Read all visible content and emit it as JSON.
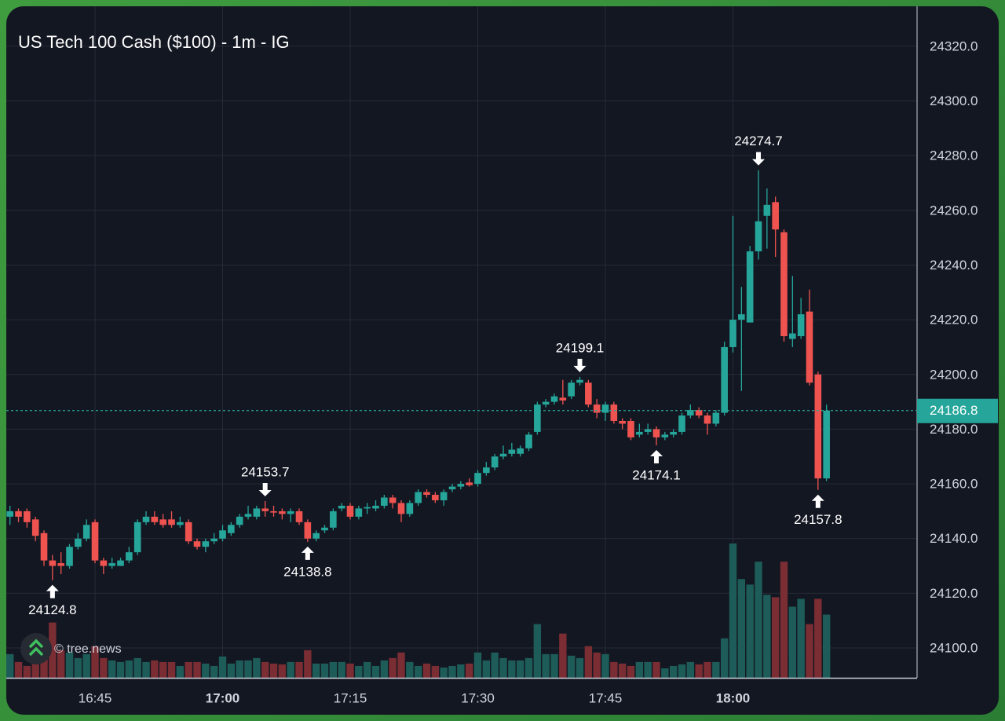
{
  "chart_data": {
    "type": "candlestick",
    "title": "US Tech 100 Cash ($100) - 1m - IG",
    "watermark": "© tree.news",
    "categories": [
      null,
      null,
      null,
      null,
      null,
      null,
      null,
      null,
      null,
      null,
      "16:45",
      null,
      null,
      null,
      null,
      null,
      null,
      null,
      null,
      null,
      null,
      null,
      null,
      null,
      null,
      "17:00",
      null,
      null,
      null,
      null,
      null,
      null,
      null,
      null,
      null,
      null,
      null,
      null,
      null,
      null,
      "17:15",
      null,
      null,
      null,
      null,
      null,
      null,
      null,
      null,
      null,
      null,
      null,
      null,
      null,
      null,
      "17:30",
      null,
      null,
      null,
      null,
      null,
      null,
      null,
      null,
      null,
      null,
      null,
      null,
      null,
      null,
      "17:45",
      null,
      null,
      null,
      null,
      null,
      null,
      null,
      null,
      null,
      null,
      null,
      null,
      null,
      null,
      "18:00",
      null,
      null,
      null,
      null,
      null,
      null,
      null,
      null,
      null,
      null,
      null
    ],
    "open": [
      24148,
      24150,
      24150,
      24147,
      24142,
      24132,
      24131,
      24130,
      24137,
      24140,
      24146,
      24132,
      24130,
      24130,
      24132,
      24135,
      24146,
      24148,
      24147,
      24147,
      24145,
      24146,
      24139,
      24137,
      24139,
      24140,
      24142,
      24145,
      24148,
      24148,
      24151,
      24150,
      24150,
      24149,
      24150,
      24146,
      24140,
      24143,
      24144,
      24151,
      24152,
      24148,
      24151,
      24151,
      24152,
      24155,
      24153,
      24149,
      24153,
      24157,
      24156,
      24154,
      24158,
      24159,
      24160.5,
      24160,
      24164,
      24166,
      24170,
      24171,
      24171,
      24173,
      24179,
      24189,
      24190,
      24191.5,
      24192,
      24197,
      24197,
      24189,
      24186,
      24189,
      24183,
      24183,
      24178,
      24179,
      24180,
      24177,
      24178,
      24179,
      24185,
      24187,
      24185,
      24182,
      24186,
      24210,
      24220,
      24219,
      24245,
      24258,
      24263,
      24252,
      24213,
      24214,
      24223,
      24200,
      24162
    ],
    "high": [
      24152,
      24151,
      24151,
      24148,
      24143,
      24134,
      24135,
      24138,
      24142,
      24147,
      24147,
      24133,
      24133,
      24133,
      24137,
      24147,
      24150,
      24150,
      24149,
      24150,
      24148,
      24147,
      24140,
      24140,
      24142,
      24145,
      24146,
      24149,
      24152,
      24152,
      24153.7,
      24152,
      24151,
      24151,
      24151,
      24147,
      24143,
      24145,
      24151,
      24153,
      24153,
      24152,
      24153,
      24154,
      24156,
      24156,
      24154,
      24154,
      24158,
      24158,
      24157,
      24158,
      24160,
      24161,
      24162,
      24165,
      24168,
      24171,
      24174,
      24175,
      24174,
      24179,
      24190,
      24191,
      24193,
      24198,
      24198,
      24199.1,
      24198,
      24191,
      24190,
      24190,
      24184,
      24184,
      24182,
      24182,
      24181,
      24179,
      24180,
      24186,
      24189,
      24188,
      24186,
      24187,
      24212,
      24258,
      24232,
      24247,
      24274.7,
      24268,
      24265,
      24253,
      24236,
      24228,
      24231,
      24201,
      24189
    ],
    "low": [
      24145,
      24146,
      24144,
      24139,
      24130,
      24124.8,
      24127,
      24129,
      24136,
      24139,
      24131,
      24127,
      24129,
      24130,
      24131,
      24134,
      24145,
      24145,
      24144,
      24144,
      24144,
      24138,
      24136,
      24135,
      24138,
      24139,
      24141,
      24144,
      24147,
      24147,
      24148,
      24148,
      24147,
      24146,
      24145,
      24138.8,
      24139,
      24142,
      24143,
      24150,
      24147,
      24147,
      24149,
      24150,
      24151,
      24151,
      24146,
      24148,
      24152,
      24155,
      24153,
      24152,
      24157,
      24158,
      24159,
      24159,
      24163,
      24165,
      24169,
      24170,
      24170,
      24172,
      24178,
      24188,
      24189,
      24189,
      24191,
      24196,
      24188,
      24184,
      24183,
      24182,
      24180,
      24176,
      24177,
      24178,
      24174.1,
      24176,
      24177,
      24178,
      24184,
      24184,
      24178,
      24181,
      24185,
      24208,
      24194,
      24219,
      24242,
      24246,
      24243,
      24212,
      24210,
      24213,
      24196,
      24157.8,
      24161
    ],
    "close": [
      24150,
      24148,
      24146,
      24141,
      24132,
      24130,
      24130,
      24137,
      24140,
      24145,
      24132,
      24130,
      24131,
      24132,
      24135,
      24146,
      24148,
      24146,
      24145,
      24145,
      24146,
      24139,
      24137,
      24139,
      24140,
      24143,
      24145,
      24148,
      24149,
      24151,
      24150,
      24149.5,
      24149,
      24150,
      24146,
      24140,
      24142,
      24144,
      24150,
      24152,
      24148,
      24151,
      24151.5,
      24152,
      24155,
      24153,
      24149,
      24153,
      24157,
      24156,
      24154,
      24157,
      24159,
      24160,
      24159.5,
      24164,
      24166,
      24170,
      24171,
      24172.5,
      24173,
      24178,
      24189,
      24190,
      24192,
      24190.5,
      24197,
      24198,
      24189,
      24186,
      24189,
      24183,
      24182,
      24177,
      24179,
      24180,
      24177,
      24178,
      24179,
      24185,
      24187,
      24185,
      24182,
      24186,
      24210,
      24220,
      24222,
      24245,
      24256,
      24262,
      24253,
      24214,
      24215,
      24222,
      24197,
      24162,
      24186.8
    ],
    "volume": [
      30,
      20,
      15,
      20,
      25,
      70,
      35,
      32,
      25,
      30,
      40,
      25,
      22,
      20,
      22,
      25,
      20,
      22,
      20,
      20,
      15,
      20,
      20,
      18,
      15,
      27,
      18,
      22,
      22,
      25,
      20,
      18,
      17,
      20,
      20,
      35,
      18,
      18,
      20,
      20,
      18,
      15,
      20,
      15,
      22,
      25,
      32,
      20,
      15,
      18,
      15,
      13,
      15,
      17,
      18,
      32,
      22,
      32,
      25,
      22,
      22,
      25,
      68,
      30,
      30,
      56,
      28,
      25,
      40,
      32,
      30,
      20,
      18,
      15,
      20,
      20,
      20,
      12,
      15,
      17,
      20,
      17,
      20,
      20,
      50,
      170,
      125,
      118,
      147,
      105,
      102,
      147,
      90,
      100,
      68,
      100,
      80
    ],
    "up_color": "#26a69a",
    "down_color": "#ef5350",
    "volume_up_color": "#1d5c58",
    "volume_down_color": "#7a2d33",
    "last_price": 24186.8,
    "annotations": [
      {
        "x": 5,
        "value": 24124.8,
        "position": "below"
      },
      {
        "x": 30,
        "value": 24153.7,
        "position": "above"
      },
      {
        "x": 35,
        "value": 24138.8,
        "position": "below"
      },
      {
        "x": 67,
        "value": 24199.1,
        "position": "above"
      },
      {
        "x": 76,
        "value": 24174.1,
        "position": "below"
      },
      {
        "x": 88,
        "value": 24274.7,
        "position": "above"
      },
      {
        "x": 95,
        "value": 24157.8,
        "position": "below"
      }
    ],
    "ylim": [
      24089.1,
      24334.6
    ],
    "yticks": [
      {
        "value": 24100,
        "label": "24100.0"
      },
      {
        "value": 24120,
        "label": "24120.0"
      },
      {
        "value": 24140,
        "label": "24140.0"
      },
      {
        "value": 24160,
        "label": "24160.0"
      },
      {
        "value": 24180,
        "label": "24180.0"
      },
      {
        "value": 24200,
        "label": "24200.0"
      },
      {
        "value": 24220,
        "label": "24220.0"
      },
      {
        "value": 24240,
        "label": "24240.0"
      },
      {
        "value": 24260,
        "label": "24260.0"
      },
      {
        "value": 24280,
        "label": "24280.0"
      },
      {
        "value": 24300,
        "label": "24300.0"
      },
      {
        "value": 24320,
        "label": "24320.0"
      }
    ],
    "grid": true
  }
}
